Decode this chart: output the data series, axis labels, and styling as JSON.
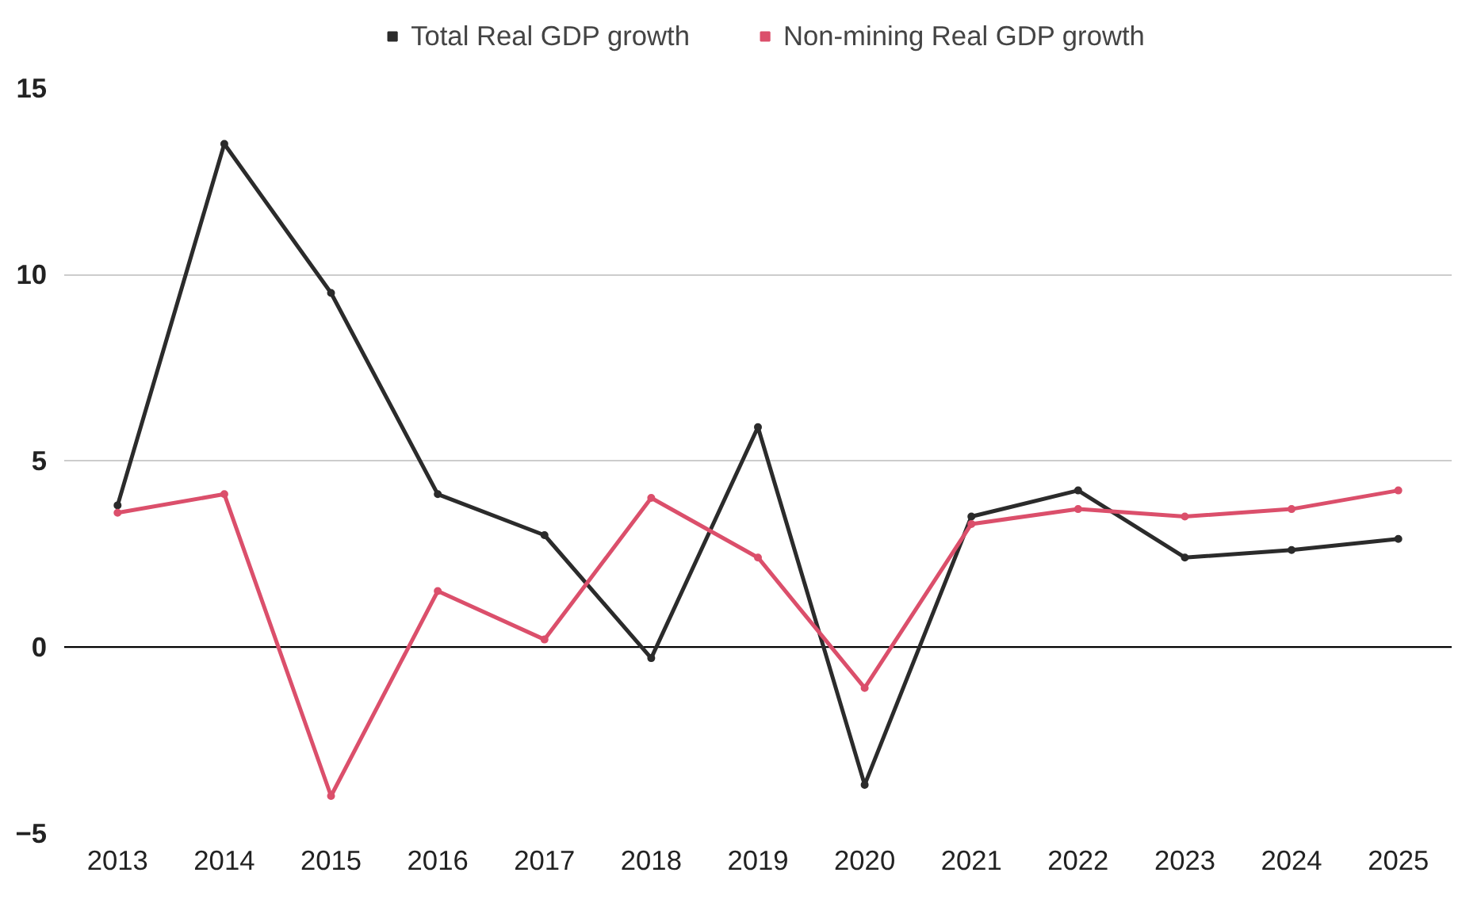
{
  "chart_data": {
    "type": "line",
    "categories": [
      "2013",
      "2014",
      "2015",
      "2016",
      "2017",
      "2018",
      "2019",
      "2020",
      "2021",
      "2022",
      "2023",
      "2024",
      "2025"
    ],
    "series": [
      {
        "name": "Total Real GDP growth",
        "color": "#2b2b2b",
        "values": [
          3.8,
          13.5,
          9.5,
          4.1,
          3.0,
          -0.3,
          5.9,
          -3.7,
          3.5,
          4.2,
          2.4,
          2.6,
          2.9
        ]
      },
      {
        "name": "Non-mining Real GDP growth",
        "color": "#db4f6b",
        "values": [
          3.6,
          4.1,
          -4.0,
          1.5,
          0.2,
          4.0,
          2.4,
          -1.1,
          3.3,
          3.7,
          3.5,
          3.7,
          4.2
        ]
      }
    ],
    "ylim": [
      -5,
      15
    ],
    "yticks": [
      -5,
      0,
      5,
      10,
      15
    ],
    "ref_lines": [
      {
        "axis": "y",
        "value": 0,
        "color": "#000000"
      }
    ],
    "grid": "y",
    "legend": "top",
    "marker": "circle",
    "line_style": "solid"
  }
}
